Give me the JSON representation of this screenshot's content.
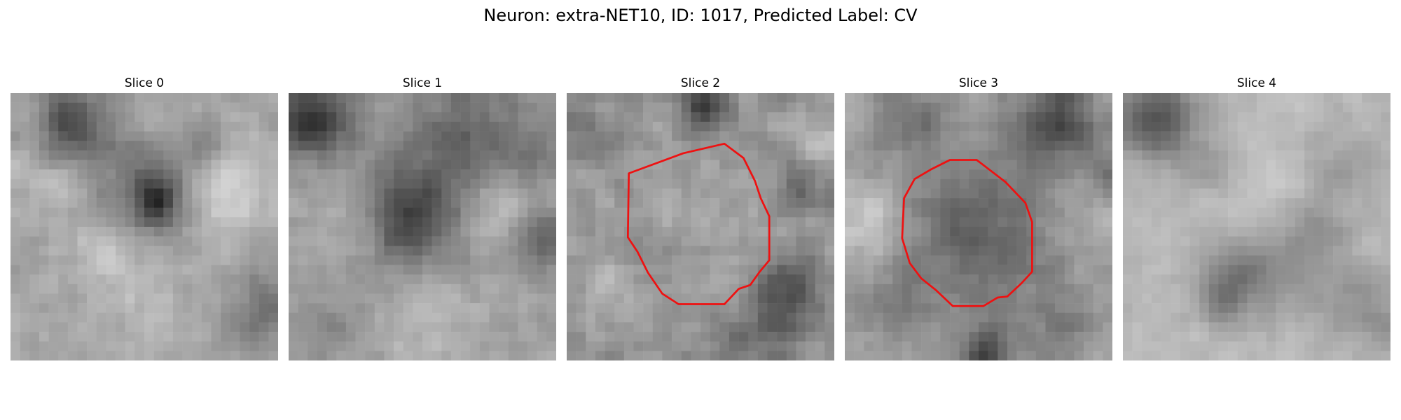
{
  "figure": {
    "title": "Neuron: extra-NET10, ID: 1017, Predicted Label: CV"
  },
  "colors": {
    "contour": "#ee1111",
    "colormap": "grayscale",
    "background": "#ffffff"
  },
  "panels": [
    {
      "title": "Slice 0",
      "has_contour": false
    },
    {
      "title": "Slice 1",
      "has_contour": false
    },
    {
      "title": "Slice 2",
      "has_contour": true
    },
    {
      "title": "Slice 3",
      "has_contour": true
    },
    {
      "title": "Slice 4",
      "has_contour": false
    }
  ]
}
